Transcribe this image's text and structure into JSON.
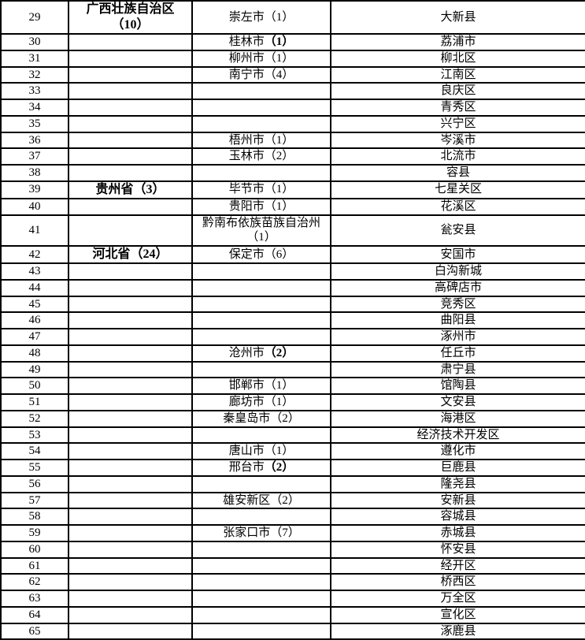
{
  "colors": {
    "border": "#000000",
    "text": "#000000",
    "background": "#ffffff"
  },
  "table": {
    "rows": [
      {
        "num": "29",
        "province": {
          "name": "广西壮族自治区",
          "count": "（10）"
        },
        "city": {
          "name": "崇左市",
          "count": "（1）",
          "count_bold": false
        },
        "county": "大新县"
      },
      {
        "num": "30",
        "province": null,
        "city": {
          "name": "桂林市",
          "count": "（1）",
          "count_bold": true
        },
        "county": "荔浦市"
      },
      {
        "num": "31",
        "province": null,
        "city": {
          "name": "柳州市",
          "count": "（1）",
          "count_bold": false
        },
        "county": "柳北区"
      },
      {
        "num": "32",
        "province": null,
        "city": {
          "name": "南宁市",
          "count": "（4）",
          "count_bold": false
        },
        "county": "江南区"
      },
      {
        "num": "33",
        "province": null,
        "city": null,
        "county": "良庆区"
      },
      {
        "num": "34",
        "province": null,
        "city": null,
        "county": "青秀区"
      },
      {
        "num": "35",
        "province": null,
        "city": null,
        "county": "兴宁区"
      },
      {
        "num": "36",
        "province": null,
        "city": {
          "name": "梧州市",
          "count": "（1）",
          "count_bold": false
        },
        "county": "岑溪市"
      },
      {
        "num": "37",
        "province": null,
        "city": {
          "name": "玉林市",
          "count": "（2）",
          "count_bold": false
        },
        "county": "北流市"
      },
      {
        "num": "38",
        "province": null,
        "city": null,
        "county": "容县"
      },
      {
        "num": "39",
        "province": {
          "name": "贵州省",
          "count": "（3）"
        },
        "city": {
          "name": "毕节市",
          "count": "（1）",
          "count_bold": false
        },
        "county": "七星关区"
      },
      {
        "num": "40",
        "province": null,
        "city": {
          "name": "贵阳市",
          "count": "（1）",
          "count_bold": false
        },
        "county": "花溪区"
      },
      {
        "num": "41",
        "province": null,
        "city": {
          "name": "黔南布依族苗族自治州",
          "count": "（1）",
          "count_bold": false
        },
        "county": "瓮安县"
      },
      {
        "num": "42",
        "province": {
          "name": "河北省",
          "count": "（24）"
        },
        "city": {
          "name": "保定市",
          "count": "（6）",
          "count_bold": false
        },
        "county": "安国市"
      },
      {
        "num": "43",
        "province": null,
        "city": null,
        "county": "白沟新城"
      },
      {
        "num": "44",
        "province": null,
        "city": null,
        "county": "高碑店市"
      },
      {
        "num": "45",
        "province": null,
        "city": null,
        "county": "竞秀区"
      },
      {
        "num": "46",
        "province": null,
        "city": null,
        "county": "曲阳县"
      },
      {
        "num": "47",
        "province": null,
        "city": null,
        "county": "涿州市"
      },
      {
        "num": "48",
        "province": null,
        "city": {
          "name": "沧州市",
          "count": "（2）",
          "count_bold": true
        },
        "county": "任丘市"
      },
      {
        "num": "49",
        "province": null,
        "city": null,
        "county": "肃宁县"
      },
      {
        "num": "50",
        "province": null,
        "city": {
          "name": "邯郸市",
          "count": "（1）",
          "count_bold": false
        },
        "county": "馆陶县"
      },
      {
        "num": "51",
        "province": null,
        "city": {
          "name": "廊坊市",
          "count": "（1）",
          "count_bold": false
        },
        "county": "文安县"
      },
      {
        "num": "52",
        "province": null,
        "city": {
          "name": "秦皇岛市",
          "count": "（2）",
          "count_bold": false
        },
        "county": "海港区"
      },
      {
        "num": "53",
        "province": null,
        "city": null,
        "county": "经济技术开发区"
      },
      {
        "num": "54",
        "province": null,
        "city": {
          "name": "唐山市",
          "count": "（1）",
          "count_bold": false
        },
        "county": "遵化市"
      },
      {
        "num": "55",
        "province": null,
        "city": {
          "name": "邢台市",
          "count": "（2）",
          "count_bold": true
        },
        "county": "巨鹿县"
      },
      {
        "num": "56",
        "province": null,
        "city": null,
        "county": "隆尧县"
      },
      {
        "num": "57",
        "province": null,
        "city": {
          "name": "雄安新区",
          "count": "（2）",
          "count_bold": false
        },
        "county": "安新县"
      },
      {
        "num": "58",
        "province": null,
        "city": null,
        "county": "容城县"
      },
      {
        "num": "59",
        "province": null,
        "city": {
          "name": "张家口市",
          "count": "（7）",
          "count_bold": false
        },
        "county": "赤城县"
      },
      {
        "num": "60",
        "province": null,
        "city": null,
        "county": "怀安县"
      },
      {
        "num": "61",
        "province": null,
        "city": null,
        "county": "经开区"
      },
      {
        "num": "62",
        "province": null,
        "city": null,
        "county": "桥西区"
      },
      {
        "num": "63",
        "province": null,
        "city": null,
        "county": "万全区"
      },
      {
        "num": "64",
        "province": null,
        "city": null,
        "county": "宣化区"
      },
      {
        "num": "65",
        "province": null,
        "city": null,
        "county": "涿鹿县"
      }
    ]
  }
}
